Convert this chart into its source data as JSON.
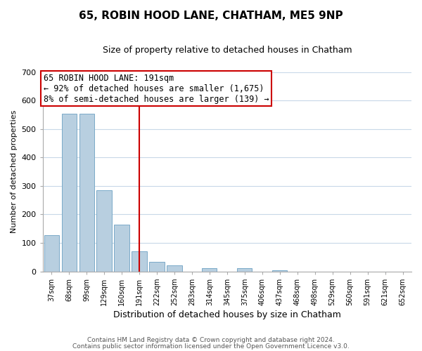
{
  "title": "65, ROBIN HOOD LANE, CHATHAM, ME5 9NP",
  "subtitle": "Size of property relative to detached houses in Chatham",
  "xlabel": "Distribution of detached houses by size in Chatham",
  "ylabel": "Number of detached properties",
  "categories": [
    "37sqm",
    "68sqm",
    "99sqm",
    "129sqm",
    "160sqm",
    "191sqm",
    "222sqm",
    "252sqm",
    "283sqm",
    "314sqm",
    "345sqm",
    "375sqm",
    "406sqm",
    "437sqm",
    "468sqm",
    "498sqm",
    "529sqm",
    "560sqm",
    "591sqm",
    "621sqm",
    "652sqm"
  ],
  "values": [
    128,
    555,
    555,
    284,
    163,
    70,
    34,
    20,
    0,
    10,
    0,
    10,
    0,
    3,
    0,
    0,
    0,
    0,
    0,
    0,
    0
  ],
  "bar_color": "#b8cfe0",
  "bar_edge_color": "#7aaac8",
  "vline_x_index": 5,
  "vline_color": "#cc0000",
  "annotation_line1": "65 ROBIN HOOD LANE: 191sqm",
  "annotation_line2": "← 92% of detached houses are smaller (1,675)",
  "annotation_line3": "8% of semi-detached houses are larger (139) →",
  "annotation_box_color": "#ffffff",
  "annotation_box_edge_color": "#cc0000",
  "ylim": [
    0,
    700
  ],
  "yticks": [
    0,
    100,
    200,
    300,
    400,
    500,
    600,
    700
  ],
  "footer_line1": "Contains HM Land Registry data © Crown copyright and database right 2024.",
  "footer_line2": "Contains public sector information licensed under the Open Government Licence v3.0.",
  "background_color": "#ffffff",
  "grid_color": "#c8d8e8",
  "title_fontsize": 11,
  "subtitle_fontsize": 9,
  "ylabel_fontsize": 8,
  "xlabel_fontsize": 9,
  "tick_fontsize": 8,
  "xtick_fontsize": 7,
  "annot_fontsize": 8.5,
  "footer_fontsize": 6.5
}
